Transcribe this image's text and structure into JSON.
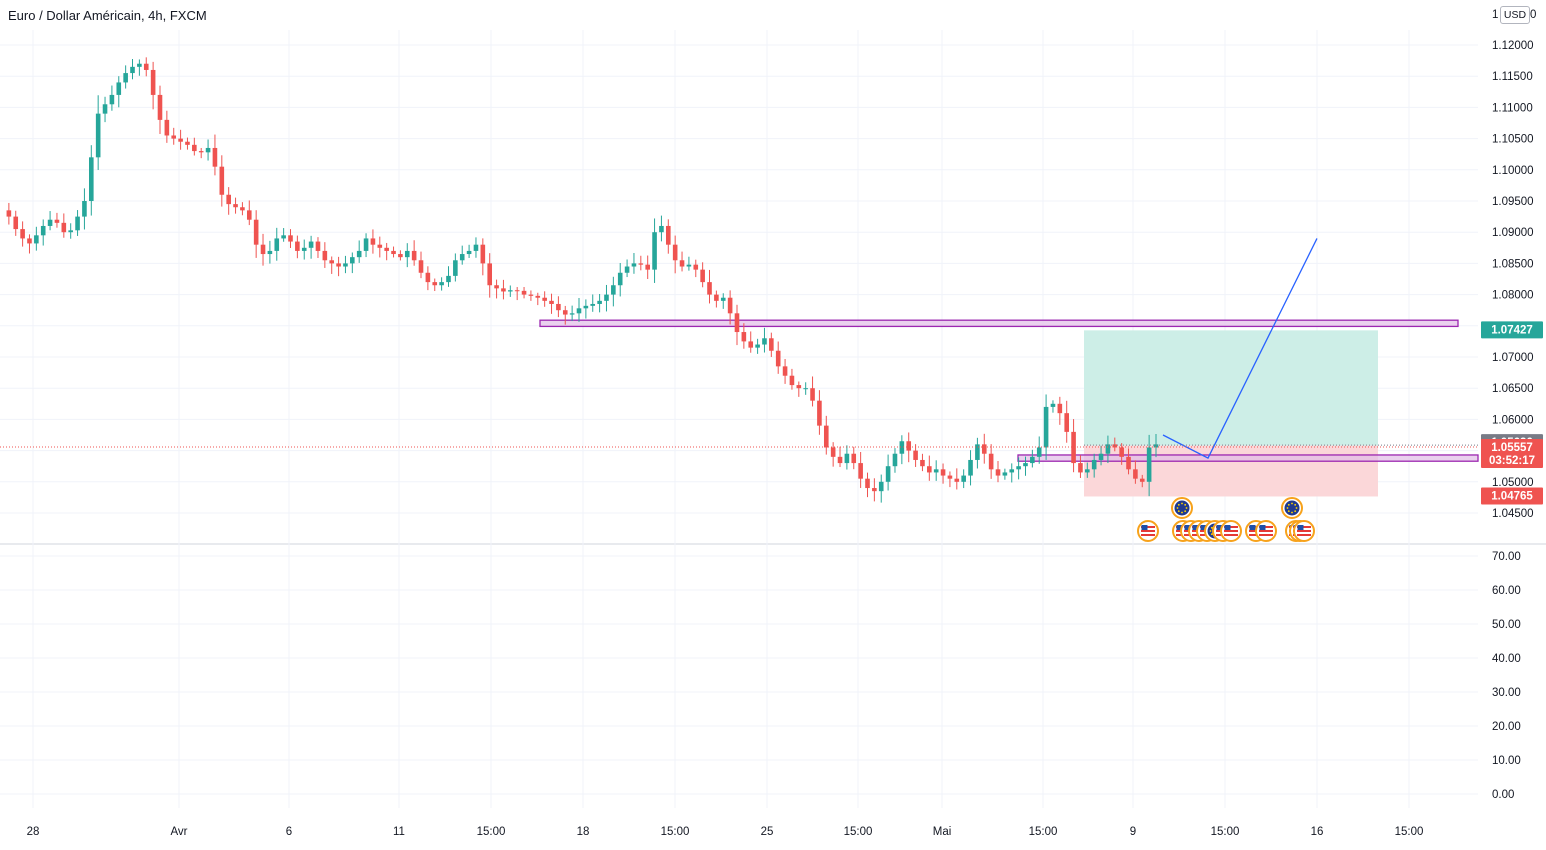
{
  "header": {
    "symbol_title": "Euro / Dollar Américain, 4h, FXCM",
    "currency_badge": "USD"
  },
  "colors": {
    "up": "#26a69a",
    "down": "#ef5350",
    "zone_border": "#9c27b0",
    "zone_fill": "#e1bee7",
    "target_fill": "#cdeee7",
    "stop_fill": "#fbd7d9",
    "projection": "#2962ff",
    "grid": "#f0f3fa",
    "axis_text": "#131722"
  },
  "chart_data": {
    "type": "candlestick",
    "timeframe": "4h",
    "price_axis": {
      "ticks": [
        "1.04500",
        "1.05000",
        "1.05500",
        "1.06000",
        "1.06500",
        "1.07000",
        "1.07500",
        "1.08000",
        "1.08500",
        "1.09000",
        "1.09500",
        "1.10000",
        "1.10500",
        "1.11000",
        "1.11500",
        "1.12000"
      ],
      "ylim": [
        1.0425,
        1.125
      ]
    },
    "time_axis": {
      "ticks": [
        "28",
        "Avr",
        "6",
        "11",
        "15:00",
        "18",
        "15:00",
        "25",
        "15:00",
        "Mai",
        "15:00",
        "9",
        "15:00",
        "16",
        "15:00"
      ]
    },
    "price_labels": {
      "target": "1.07427",
      "last": "1.05636",
      "current": "1.05557",
      "countdown": "03:52:17",
      "stop": "1.04765"
    },
    "price_levels": {
      "target": 1.07427,
      "last": 1.05636,
      "current": 1.05557,
      "stop": 1.04765,
      "resistance_zone": [
        1.0749,
        1.0759
      ],
      "support_zone": [
        1.0533,
        1.0543
      ],
      "entry": 1.0558,
      "projection": [
        1.0575,
        1.0538,
        1.089
      ]
    },
    "oscillator": {
      "ticks": [
        "0.00",
        "10.00",
        "20.00",
        "30.00",
        "40.00",
        "50.00",
        "60.00",
        "70.00"
      ],
      "ylim": [
        0,
        70
      ]
    },
    "events": {
      "row1": [
        "eu",
        "eu"
      ],
      "row2": [
        "us",
        "us",
        "us",
        "us",
        "us",
        "eu",
        "us",
        "us",
        "us",
        "us",
        "us",
        "us",
        "us"
      ]
    },
    "path": [
      1.0935,
      1.0925,
      1.0905,
      1.089,
      1.0882,
      1.0895,
      1.091,
      1.092,
      1.0915,
      1.09,
      1.0903,
      1.0925,
      1.095,
      1.102,
      1.109,
      1.1105,
      1.112,
      1.114,
      1.1155,
      1.1165,
      1.117,
      1.116,
      1.112,
      1.108,
      1.1055,
      1.105,
      1.1045,
      1.104,
      1.103,
      1.1028,
      1.1035,
      1.1005,
      1.096,
      1.0945,
      1.094,
      1.0935,
      1.092,
      1.088,
      1.0865,
      1.087,
      1.089,
      1.0895,
      1.0885,
      1.087,
      1.0875,
      1.0885,
      1.087,
      1.0855,
      1.085,
      1.0845,
      1.085,
      1.086,
      1.087,
      1.089,
      1.088,
      1.0875,
      1.087,
      1.0865,
      1.086,
      1.087,
      1.0855,
      1.0835,
      1.082,
      1.0815,
      1.082,
      1.083,
      1.0855,
      1.0865,
      1.087,
      1.088,
      1.085,
      1.0815,
      1.081,
      1.0805,
      1.0807,
      1.0806,
      1.08,
      1.0798,
      1.0795,
      1.079,
      1.0785,
      1.0775,
      1.0768,
      1.077,
      1.0778,
      1.0782,
      1.0785,
      1.079,
      1.08,
      1.0815,
      1.0835,
      1.0845,
      1.085,
      1.0848,
      1.084,
      1.09,
      1.091,
      1.088,
      1.0855,
      1.0845,
      1.0848,
      1.084,
      1.082,
      1.08,
      1.079,
      1.0795,
      1.077,
      1.074,
      1.0725,
      1.0715,
      1.072,
      1.073,
      1.071,
      1.0685,
      1.067,
      1.0655,
      1.065,
      1.065,
      1.063,
      1.059,
      1.0555,
      1.054,
      1.053,
      1.0545,
      1.053,
      1.0505,
      1.049,
      1.0485,
      1.05,
      1.0525,
      1.0545,
      1.0565,
      1.055,
      1.0535,
      1.0525,
      1.0515,
      1.052,
      1.051,
      1.0505,
      1.05,
      1.051,
      1.0535,
      1.056,
      1.0545,
      1.052,
      1.051,
      1.0515,
      1.052,
      1.0525,
      1.053,
      1.054,
      1.0555,
      1.062,
      1.0625,
      1.061,
      1.058,
      1.053,
      1.0515,
      1.052,
      1.0535,
      1.0545,
      1.056,
      1.0555,
      1.054,
      1.052,
      1.0505,
      1.05,
      1.0555,
      1.056
    ]
  }
}
